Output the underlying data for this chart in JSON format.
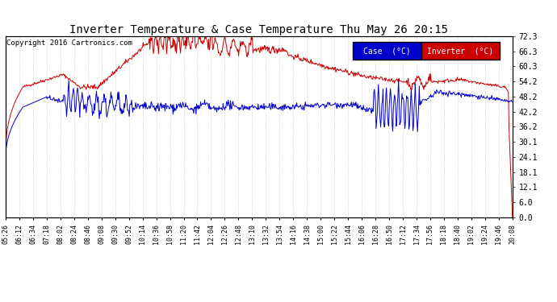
{
  "title": "Inverter Temperature & Case Temperature Thu May 26 20:15",
  "copyright": "Copyright 2016 Cartronics.com",
  "ylabel_right": [
    "0.0",
    "6.0",
    "12.1",
    "18.1",
    "24.1",
    "30.1",
    "36.2",
    "42.2",
    "48.2",
    "54.2",
    "60.3",
    "66.3",
    "72.3"
  ],
  "ytick_vals": [
    0.0,
    6.0,
    12.1,
    18.1,
    24.1,
    30.1,
    36.2,
    42.2,
    48.2,
    54.2,
    60.3,
    66.3,
    72.3
  ],
  "ymin": 0.0,
  "ymax": 72.3,
  "case_color": "#0000cc",
  "inverter_color": "#cc0000",
  "bg_color": "#ffffff",
  "plot_bg": "#ffffff",
  "grid_color": "#aaaaaa",
  "legend_case_bg": "#0000cc",
  "legend_inverter_bg": "#cc0000",
  "xtick_labels": [
    "05:26",
    "06:12",
    "06:34",
    "07:18",
    "08:02",
    "08:24",
    "08:46",
    "09:08",
    "09:30",
    "09:52",
    "10:14",
    "10:36",
    "10:58",
    "11:20",
    "11:42",
    "12:04",
    "12:26",
    "12:48",
    "13:10",
    "13:32",
    "13:54",
    "14:16",
    "14:38",
    "15:00",
    "15:22",
    "15:44",
    "16:06",
    "16:28",
    "16:50",
    "17:12",
    "17:34",
    "17:56",
    "18:18",
    "18:40",
    "19:02",
    "19:24",
    "19:46",
    "20:08"
  ]
}
